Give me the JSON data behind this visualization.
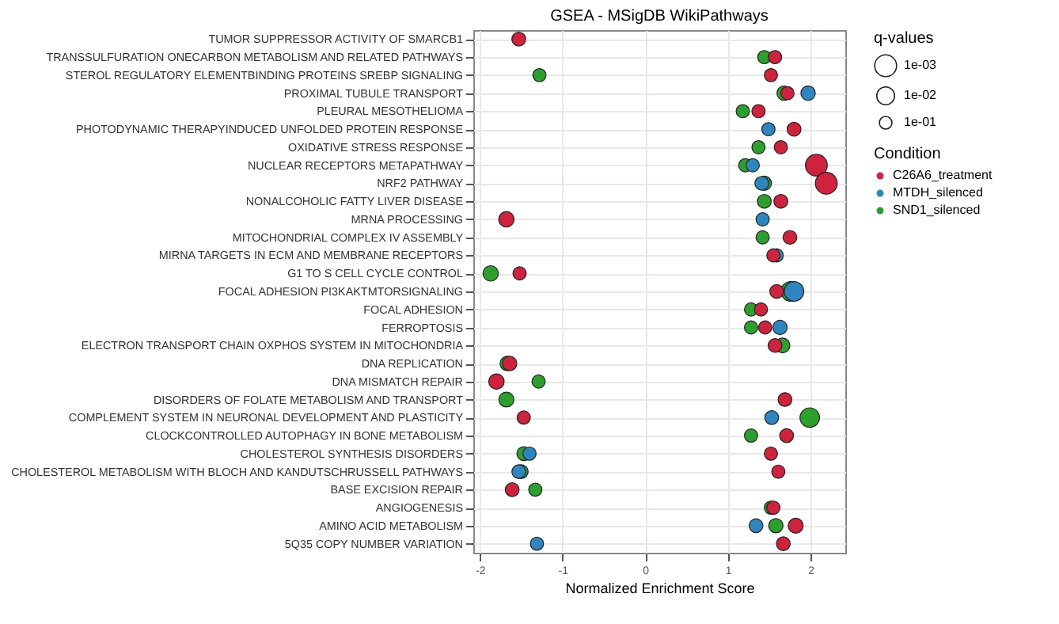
{
  "chart_data": {
    "type": "bubble",
    "orientation": "horizontal",
    "title": "GSEA - MSigDB WikiPathways",
    "xlabel": "Normalized Enrichment Score",
    "categories": [
      "TUMOR SUPPRESSOR ACTIVITY OF SMARCB1",
      "TRANSSULFURATION ONECARBON METABOLISM AND RELATED PATHWAYS",
      "STEROL REGULATORY ELEMENTBINDING PROTEINS SREBP SIGNALING",
      "PROXIMAL TUBULE TRANSPORT",
      "PLEURAL MESOTHELIOMA",
      "PHOTODYNAMIC THERAPYINDUCED UNFOLDED PROTEIN RESPONSE",
      "OXIDATIVE STRESS RESPONSE",
      "NUCLEAR RECEPTORS METAPATHWAY",
      "NRF2 PATHWAY",
      "NONALCOHOLIC FATTY LIVER DISEASE",
      "MRNA PROCESSING",
      "MITOCHONDRIAL COMPLEX IV ASSEMBLY",
      "MIRNA TARGETS IN ECM AND MEMBRANE RECEPTORS",
      "G1 TO S CELL CYCLE CONTROL",
      "FOCAL ADHESION PI3KAKTMTORSIGNALING",
      "FOCAL ADHESION",
      "FERROPTOSIS",
      "ELECTRON TRANSPORT CHAIN OXPHOS SYSTEM IN MITOCHONDRIA",
      "DNA REPLICATION",
      "DNA MISMATCH REPAIR",
      "DISORDERS OF FOLATE METABOLISM AND TRANSPORT",
      "COMPLEMENT SYSTEM IN NEURONAL DEVELOPMENT AND PLASTICITY",
      "CLOCKCONTROLLED AUTOPHAGY IN BONE METABOLISM",
      "CHOLESTEROL SYNTHESIS DISORDERS",
      "CHOLESTEROL METABOLISM WITH BLOCH AND KANDUTSCHRUSSELL PATHWAYS",
      "BASE EXCISION REPAIR",
      "ANGIOGENESIS",
      "AMINO ACID METABOLISM",
      "5Q35 COPY NUMBER VARIATION"
    ],
    "series": [
      {
        "name": "SND1_silenced",
        "color": "#2ca02c",
        "values": [
          null,
          1.44,
          -1.28,
          1.68,
          1.18,
          null,
          1.37,
          1.21,
          1.44,
          1.44,
          null,
          1.42,
          null,
          -1.87,
          1.76,
          1.28,
          1.28,
          1.66,
          -1.67,
          -1.29,
          -1.68,
          1.99,
          1.28,
          -1.47,
          -1.5,
          -1.33,
          1.52,
          1.58,
          null
        ],
        "sizes": [
          null,
          1.1,
          1.1,
          1.3,
          1.1,
          null,
          1.1,
          1.1,
          1.3,
          1.2,
          null,
          1.1,
          null,
          1.5,
          2.4,
          1.1,
          1.1,
          1.4,
          1.3,
          1.1,
          1.4,
          2.4,
          1.1,
          1.2,
          1.2,
          1.1,
          1.1,
          1.3,
          null
        ]
      },
      {
        "name": "MTDH_silenced",
        "color": "#2e86c1",
        "values": [
          null,
          null,
          null,
          1.97,
          null,
          1.49,
          null,
          1.3,
          1.41,
          null,
          1.42,
          null,
          1.59,
          null,
          1.8,
          null,
          1.63,
          null,
          null,
          null,
          null,
          1.53,
          null,
          -1.4,
          -1.53,
          null,
          null,
          1.34,
          -1.31
        ],
        "sizes": [
          null,
          null,
          null,
          1.3,
          null,
          1.1,
          null,
          1.1,
          1.2,
          null,
          1.1,
          null,
          1.1,
          null,
          2.4,
          null,
          1.3,
          null,
          null,
          null,
          null,
          1.2,
          null,
          1.1,
          1.2,
          null,
          null,
          1.2,
          1.1
        ]
      },
      {
        "name": "C26A6_treatment",
        "color": "#d0213d",
        "values": [
          -1.53,
          1.57,
          1.52,
          1.72,
          1.37,
          1.8,
          1.64,
          2.07,
          2.19,
          1.64,
          -1.68,
          1.75,
          1.55,
          -1.52,
          1.59,
          1.4,
          1.45,
          1.57,
          -1.64,
          -1.8,
          1.69,
          -1.47,
          1.71,
          1.52,
          1.61,
          -1.61,
          1.55,
          1.82,
          1.67
        ],
        "sizes": [
          1.2,
          1.1,
          1.1,
          1.1,
          1.1,
          1.2,
          1.1,
          3,
          3,
          1.2,
          1.5,
          1.2,
          1.1,
          1.1,
          1.2,
          1.1,
          1.1,
          1.2,
          1.3,
          1.5,
          1.2,
          1.1,
          1.2,
          1.1,
          1.1,
          1.2,
          1.1,
          1.4,
          1.2
        ]
      }
    ],
    "xlim": [
      -2.08,
      2.42
    ],
    "xticks": [
      -2,
      -1,
      0,
      1,
      2
    ],
    "grid": true,
    "legend": "right",
    "marker": "circle",
    "size_legend": [
      {
        "value": 3,
        "label": "1e-03"
      },
      {
        "value": 2,
        "label": "1e-02"
      },
      {
        "value": 1,
        "label": "1e-01"
      }
    ],
    "legend_title": "Condition",
    "annotations": [
      "q-values"
    ]
  }
}
